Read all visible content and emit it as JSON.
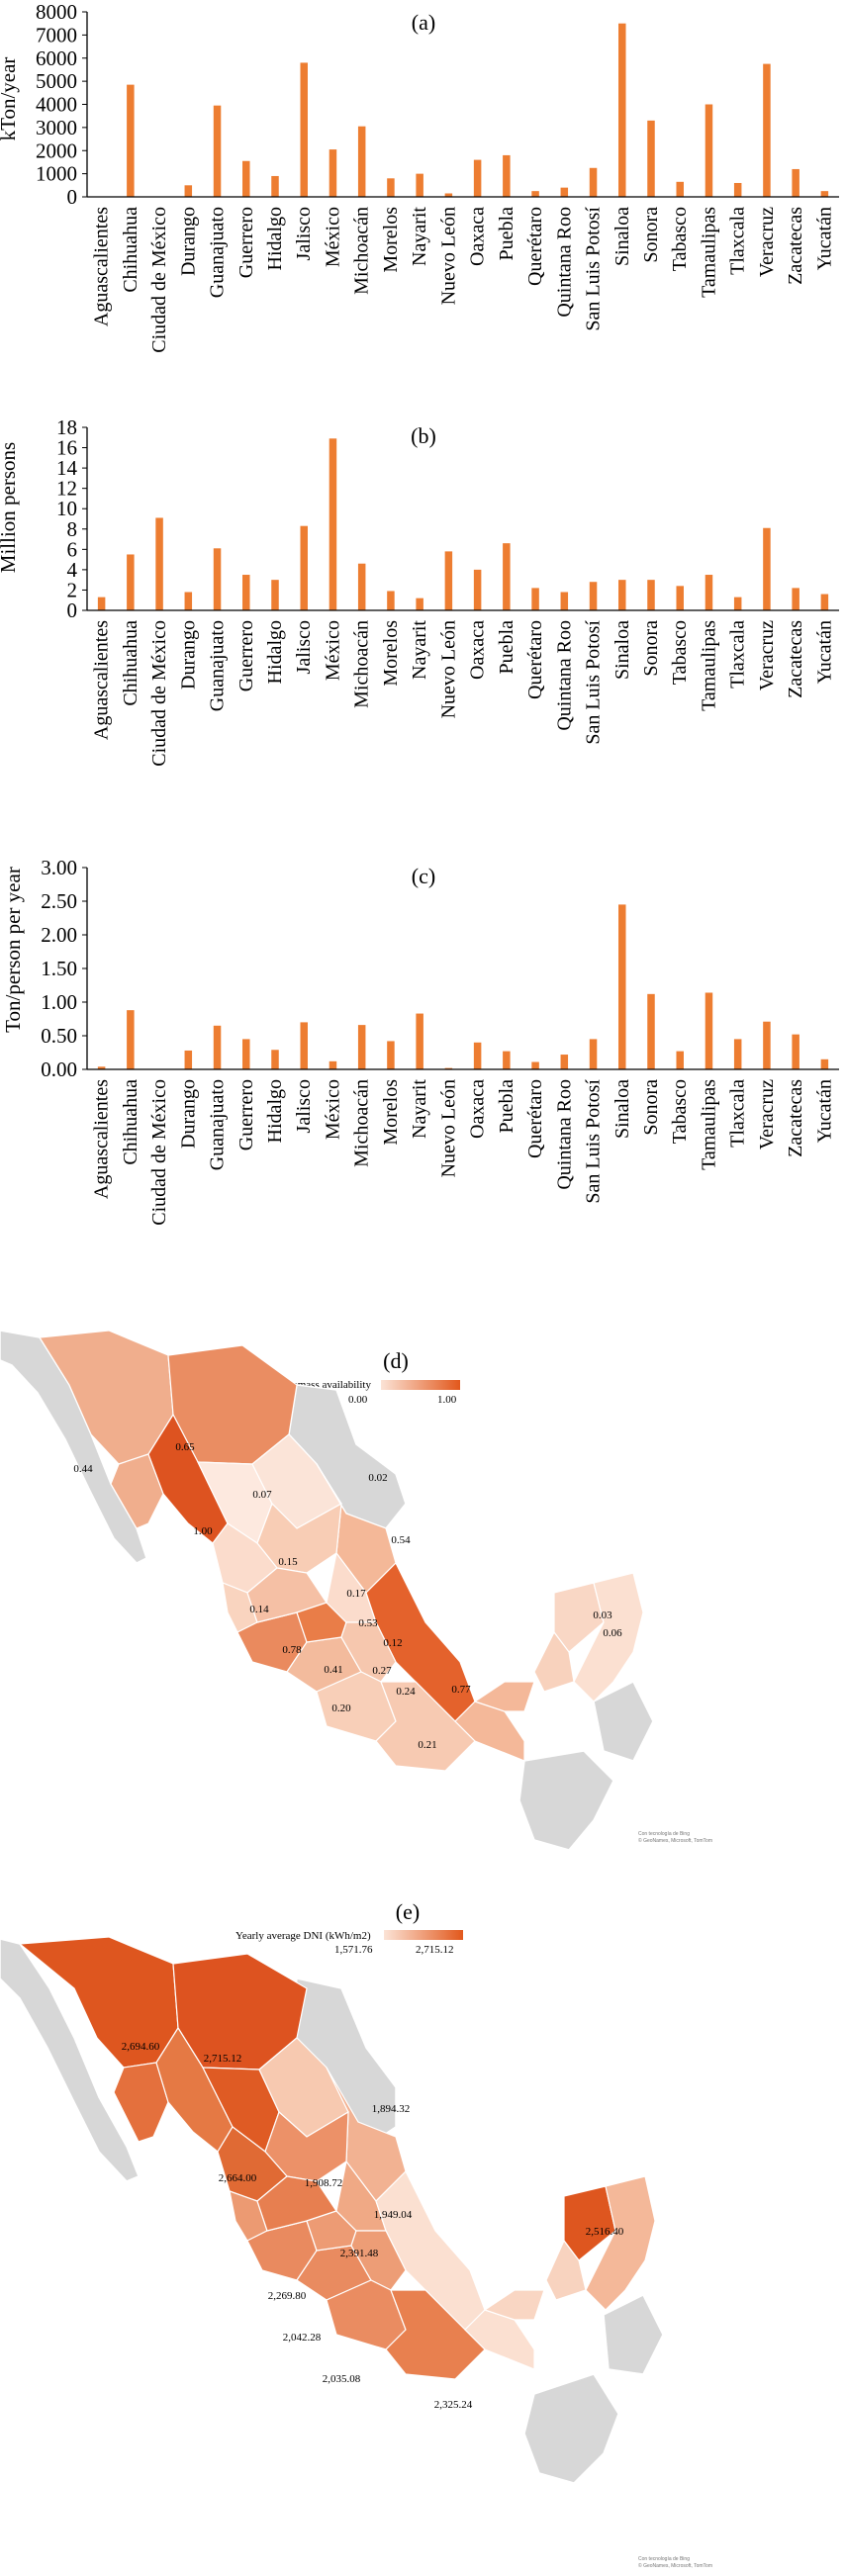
{
  "chart_data": [
    {
      "type": "bar",
      "panel": "(a)",
      "ylabel": "kTon/year",
      "ylim": [
        0,
        8000
      ],
      "yticks": [
        0,
        1000,
        2000,
        3000,
        4000,
        5000,
        6000,
        7000,
        8000
      ],
      "categories": [
        "Aguascalientes",
        "Chihuahua",
        "Ciudad de México",
        "Durango",
        "Guanajuato",
        "Guerrero",
        "Hidalgo",
        "Jalisco",
        "México",
        "Michoacán",
        "Morelos",
        "Nayarit",
        "Nuevo León",
        "Oaxaca",
        "Puebla",
        "Querétaro",
        "Quintana Roo",
        "San Luis Potosí",
        "Sinaloa",
        "Sonora",
        "Tabasco",
        "Tamaulipas",
        "Tlaxcala",
        "Veracruz",
        "Zacatecas",
        "Yucatán"
      ],
      "values": [
        0,
        4850,
        0,
        500,
        3950,
        1550,
        900,
        5800,
        2050,
        3050,
        800,
        1000,
        150,
        1600,
        1800,
        250,
        400,
        1250,
        7500,
        3300,
        650,
        4000,
        600,
        5750,
        1200,
        250
      ],
      "color": "#ED7D31"
    },
    {
      "type": "bar",
      "panel": "(b)",
      "ylabel": "Million persons",
      "ylim": [
        0,
        18
      ],
      "yticks": [
        0,
        2,
        4,
        6,
        8,
        10,
        12,
        14,
        16,
        18
      ],
      "categories": [
        "Aguascalientes",
        "Chihuahua",
        "Ciudad de México",
        "Durango",
        "Guanajuato",
        "Guerrero",
        "Hidalgo",
        "Jalisco",
        "México",
        "Michoacán",
        "Morelos",
        "Nayarit",
        "Nuevo León",
        "Oaxaca",
        "Puebla",
        "Querétaro",
        "Quintana Roo",
        "San Luis Potosí",
        "Sinaloa",
        "Sonora",
        "Tabasco",
        "Tamaulipas",
        "Tlaxcala",
        "Veracruz",
        "Zacatecas",
        "Yucatán"
      ],
      "values": [
        1.3,
        5.5,
        9.1,
        1.8,
        6.1,
        3.5,
        3.0,
        8.3,
        16.9,
        4.6,
        1.9,
        1.2,
        5.8,
        4.0,
        6.6,
        2.2,
        1.8,
        2.8,
        3.0,
        3.0,
        2.4,
        3.5,
        1.3,
        8.1,
        2.2,
        1.6
      ],
      "color": "#ED7D31"
    },
    {
      "type": "bar",
      "panel": "(c)",
      "ylabel": "Ton/person per year",
      "ylim": [
        0,
        3
      ],
      "yticks": [
        "0.00",
        "0.50",
        "1.00",
        "1.50",
        "2.00",
        "2.50",
        "3.00"
      ],
      "categories": [
        "Aguascalientes",
        "Chihuahua",
        "Ciudad de México",
        "Durango",
        "Guanajuato",
        "Guerrero",
        "Hidalgo",
        "Jalisco",
        "México",
        "Michoacán",
        "Morelos",
        "Nayarit",
        "Nuevo León",
        "Oaxaca",
        "Puebla",
        "Querétaro",
        "Quintana Roo",
        "San Luis Potosí",
        "Sinaloa",
        "Sonora",
        "Tabasco",
        "Tamaulipas",
        "Tlaxcala",
        "Veracruz",
        "Zacatecas",
        "Yucatán"
      ],
      "values": [
        0.04,
        0.88,
        0.0,
        0.28,
        0.65,
        0.45,
        0.29,
        0.7,
        0.12,
        0.66,
        0.42,
        0.83,
        0.02,
        0.4,
        0.27,
        0.11,
        0.22,
        0.45,
        2.45,
        1.12,
        0.27,
        1.14,
        0.45,
        0.71,
        0.52,
        0.15
      ],
      "color": "#ED7D31"
    }
  ],
  "maps": [
    {
      "panel": "(d)",
      "legend_title": "Normalized biomass availability",
      "legend_min": "0.00",
      "legend_max": "1.00",
      "labels": [
        "0.44",
        "0.65",
        "1.00",
        "0.07",
        "0.02",
        "0.54",
        "0.15",
        "0.17",
        "0.14",
        "0.53",
        "0.12",
        "0.78",
        "0.41",
        "0.27",
        "0.24",
        "0.77",
        "0.20",
        "0.21",
        "0.03",
        "0.06"
      ],
      "credit_line1": "Con tecnología de Bing",
      "credit_line2": "© GeoNames, Microsoft, TomTom"
    },
    {
      "panel": "(e)",
      "legend_title": "Yearly average DNI (kWh/m2)",
      "legend_min": "1,571.76",
      "legend_max": "2,715.12",
      "labels": [
        "2,694.60",
        "2,715.12",
        "1,894.32",
        "2,664.00",
        "1,908.72",
        "1,949.04",
        "2,391.48",
        "2,516.40",
        "2,269.80",
        "2,042.28",
        "2,035.08",
        "2,325.24"
      ],
      "credit_line1": "Con tecnología de Bing",
      "credit_line2": "© GeoNames, Microsoft, TomTom"
    }
  ]
}
